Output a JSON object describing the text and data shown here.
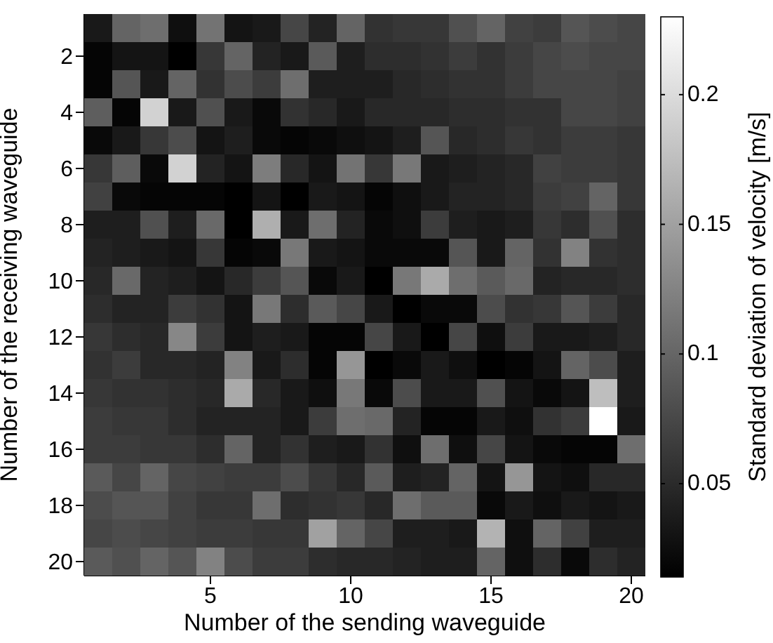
{
  "chart_data": {
    "type": "heatmap",
    "xlabel": "Number of the sending waveguide",
    "ylabel": "Number of the receiving waveguide",
    "clabel": "Standard deviation of velocity [m/s]",
    "categories": [
      null,
      null,
      null,
      null,
      "5",
      null,
      null,
      null,
      null,
      "10",
      null,
      null,
      null,
      null,
      "15",
      null,
      null,
      null,
      null,
      "20"
    ],
    "y_categories": [
      null,
      "2",
      null,
      "4",
      null,
      "6",
      null,
      "8",
      null,
      "10",
      null,
      "12",
      null,
      "14",
      null,
      "16",
      null,
      "18",
      null,
      "20"
    ],
    "clim": [
      0.014,
      0.23
    ],
    "cticks": [
      0.05,
      0.1,
      0.15,
      0.2
    ],
    "cells": [
      [
        0.035,
        0.099,
        0.107,
        0.027,
        0.111,
        0.031,
        0.035,
        0.073,
        0.044,
        0.099,
        0.056,
        0.061,
        0.061,
        0.082,
        0.099,
        0.069,
        0.065,
        0.086,
        0.078,
        0.073
      ],
      [
        0.018,
        0.031,
        0.031,
        0.014,
        0.061,
        0.099,
        0.044,
        0.035,
        0.09,
        0.039,
        0.052,
        0.052,
        0.056,
        0.065,
        0.056,
        0.065,
        0.073,
        0.078,
        0.073,
        0.073
      ],
      [
        0.018,
        0.086,
        0.035,
        0.099,
        0.056,
        0.078,
        0.065,
        0.107,
        0.039,
        0.039,
        0.039,
        0.048,
        0.052,
        0.056,
        0.056,
        0.065,
        0.073,
        0.073,
        0.073,
        0.069
      ],
      [
        0.094,
        0.018,
        0.192,
        0.035,
        0.082,
        0.035,
        0.022,
        0.056,
        0.048,
        0.035,
        0.048,
        0.048,
        0.048,
        0.052,
        0.052,
        0.056,
        0.056,
        0.073,
        0.073,
        0.069
      ],
      [
        0.022,
        0.035,
        0.061,
        0.078,
        0.031,
        0.039,
        0.022,
        0.018,
        0.022,
        0.027,
        0.031,
        0.039,
        0.086,
        0.048,
        0.052,
        0.061,
        0.056,
        0.065,
        0.065,
        0.061
      ],
      [
        0.061,
        0.094,
        0.022,
        0.192,
        0.044,
        0.031,
        0.12,
        0.048,
        0.031,
        0.111,
        0.061,
        0.116,
        0.035,
        0.039,
        0.044,
        0.048,
        0.069,
        0.065,
        0.065,
        0.061
      ],
      [
        0.069,
        0.022,
        0.018,
        0.018,
        0.018,
        0.014,
        0.031,
        0.014,
        0.035,
        0.031,
        0.018,
        0.027,
        0.035,
        0.044,
        0.044,
        0.048,
        0.065,
        0.069,
        0.099,
        0.061
      ],
      [
        0.039,
        0.039,
        0.082,
        0.039,
        0.103,
        0.014,
        0.162,
        0.035,
        0.107,
        0.044,
        0.022,
        0.027,
        0.065,
        0.039,
        0.035,
        0.039,
        0.061,
        0.052,
        0.082,
        0.052
      ],
      [
        0.044,
        0.039,
        0.035,
        0.031,
        0.061,
        0.018,
        0.022,
        0.116,
        0.035,
        0.031,
        0.022,
        0.022,
        0.022,
        0.086,
        0.035,
        0.099,
        0.056,
        0.124,
        0.056,
        0.052
      ],
      [
        0.048,
        0.103,
        0.044,
        0.039,
        0.031,
        0.048,
        0.065,
        0.086,
        0.022,
        0.035,
        0.014,
        0.116,
        0.158,
        0.107,
        0.09,
        0.103,
        0.044,
        0.048,
        0.048,
        0.052
      ],
      [
        0.052,
        0.044,
        0.044,
        0.065,
        0.056,
        0.031,
        0.116,
        0.052,
        0.09,
        0.073,
        0.035,
        0.014,
        0.022,
        0.022,
        0.078,
        0.056,
        0.061,
        0.086,
        0.065,
        0.048
      ],
      [
        0.061,
        0.052,
        0.048,
        0.128,
        0.065,
        0.031,
        0.039,
        0.035,
        0.018,
        0.018,
        0.073,
        0.035,
        0.014,
        0.073,
        0.027,
        0.065,
        0.035,
        0.035,
        0.039,
        0.048
      ],
      [
        0.056,
        0.065,
        0.048,
        0.048,
        0.044,
        0.124,
        0.035,
        0.052,
        0.018,
        0.141,
        0.014,
        0.022,
        0.035,
        0.027,
        0.014,
        0.018,
        0.031,
        0.099,
        0.078,
        0.039
      ],
      [
        0.061,
        0.056,
        0.056,
        0.052,
        0.048,
        0.158,
        0.048,
        0.035,
        0.027,
        0.116,
        0.022,
        0.078,
        0.035,
        0.035,
        0.082,
        0.031,
        0.022,
        0.031,
        0.175,
        0.039
      ],
      [
        0.065,
        0.061,
        0.061,
        0.052,
        0.044,
        0.044,
        0.044,
        0.035,
        0.065,
        0.107,
        0.103,
        0.044,
        0.018,
        0.018,
        0.035,
        0.027,
        0.056,
        0.065,
        0.23,
        0.035
      ],
      [
        0.065,
        0.065,
        0.061,
        0.061,
        0.052,
        0.099,
        0.044,
        0.056,
        0.039,
        0.035,
        0.056,
        0.027,
        0.107,
        0.027,
        0.073,
        0.031,
        0.022,
        0.018,
        0.018,
        0.107
      ],
      [
        0.09,
        0.073,
        0.099,
        0.073,
        0.069,
        0.065,
        0.065,
        0.078,
        0.061,
        0.048,
        0.09,
        0.039,
        0.044,
        0.099,
        0.031,
        0.141,
        0.031,
        0.027,
        0.048,
        0.048
      ],
      [
        0.078,
        0.086,
        0.086,
        0.069,
        0.061,
        0.061,
        0.107,
        0.052,
        0.056,
        0.061,
        0.048,
        0.107,
        0.09,
        0.09,
        0.022,
        0.035,
        0.027,
        0.035,
        0.031,
        0.035
      ],
      [
        0.073,
        0.078,
        0.073,
        0.069,
        0.065,
        0.065,
        0.061,
        0.061,
        0.15,
        0.099,
        0.073,
        0.039,
        0.039,
        0.035,
        0.166,
        0.027,
        0.099,
        0.069,
        0.039,
        0.039
      ],
      [
        0.09,
        0.082,
        0.099,
        0.086,
        0.124,
        0.078,
        0.065,
        0.065,
        0.052,
        0.048,
        0.048,
        0.044,
        0.039,
        0.039,
        0.099,
        0.027,
        0.052,
        0.022,
        0.052,
        0.044
      ]
    ]
  }
}
